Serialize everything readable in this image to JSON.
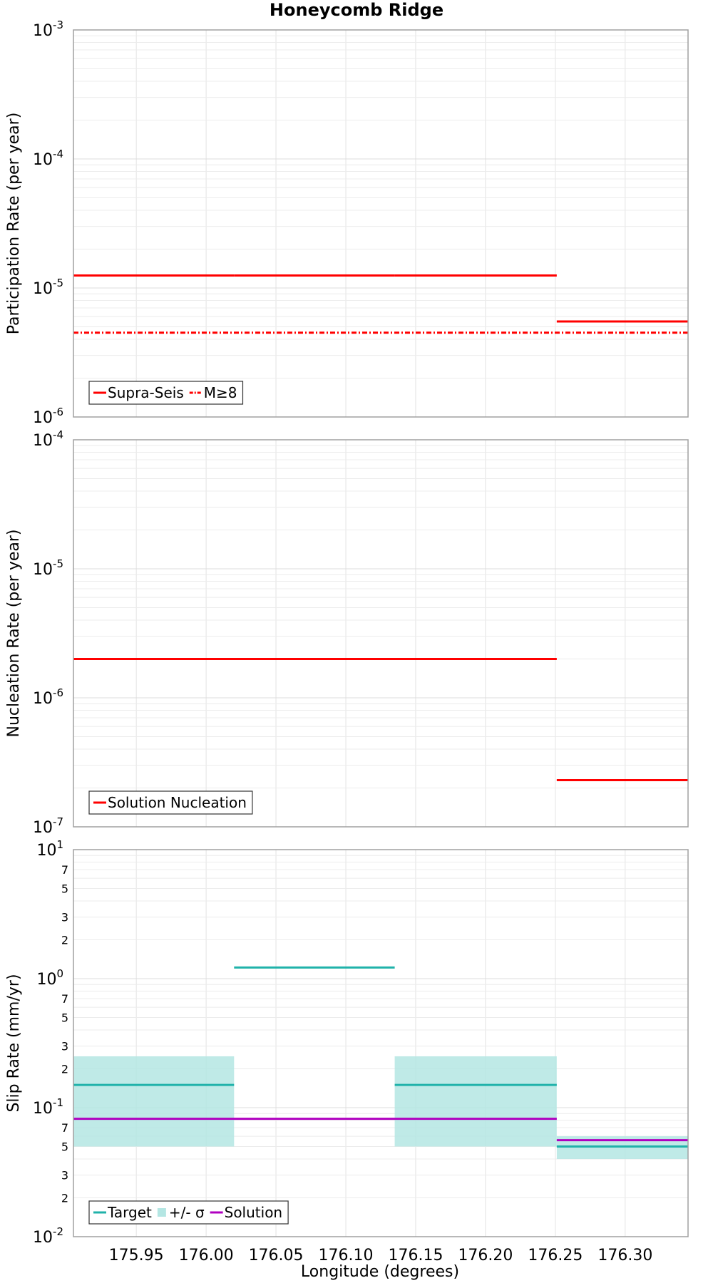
{
  "chart_data": {
    "type": "line",
    "title": "Honeycomb Ridge",
    "xlabel": "Longitude (degrees)",
    "xlim": [
      175.905,
      176.345
    ],
    "xticks": [
      "175.95",
      "176.00",
      "176.05",
      "176.10",
      "176.15",
      "176.20",
      "176.25",
      "176.30"
    ],
    "xtick_values": [
      175.95,
      176.0,
      176.05,
      176.1,
      176.15,
      176.2,
      176.25,
      176.3
    ],
    "panels": [
      {
        "name": "participation",
        "ylabel": "Participation Rate (per year)",
        "yscale": "log",
        "ylim": [
          1e-06,
          0.001
        ],
        "major_ticks": [
          {
            "exp": "-6",
            "value": 1e-06
          },
          {
            "exp": "-5",
            "value": 1e-05
          },
          {
            "exp": "-4",
            "value": 0.0001
          },
          {
            "exp": "-3",
            "value": 0.001
          }
        ],
        "minor_labels": [],
        "series": [
          {
            "name": "Supra-Seis",
            "color": "#ff0000",
            "style": "solid",
            "segments": [
              {
                "x": [
                  175.905,
                  176.02
                ],
                "y": 1.25e-05
              },
              {
                "x": [
                  176.02,
                  176.135
                ],
                "y": 1.25e-05
              },
              {
                "x": [
                  176.135,
                  176.251
                ],
                "y": 1.25e-05
              },
              {
                "x": [
                  176.251,
                  176.345
                ],
                "y": 5.5e-06
              }
            ]
          },
          {
            "name": "M≥8",
            "color": "#ff0000",
            "style": "dashdot",
            "segments": [
              {
                "x": [
                  175.905,
                  176.345
                ],
                "y": 4.5e-06
              }
            ]
          }
        ],
        "bands": [],
        "legend": [
          {
            "label": "Supra-Seis",
            "kind": "line",
            "color": "#ff0000",
            "style": "solid"
          },
          {
            "label": "M≥8",
            "kind": "line",
            "color": "#ff0000",
            "style": "dashdot"
          }
        ]
      },
      {
        "name": "nucleation",
        "ylabel": "Nucleation Rate (per year)",
        "yscale": "log",
        "ylim": [
          1e-07,
          0.0001
        ],
        "major_ticks": [
          {
            "exp": "-7",
            "value": 1e-07
          },
          {
            "exp": "-6",
            "value": 1e-06
          },
          {
            "exp": "-5",
            "value": 1e-05
          },
          {
            "exp": "-4",
            "value": 0.0001
          }
        ],
        "minor_labels": [],
        "series": [
          {
            "name": "Solution Nucleation",
            "color": "#ff0000",
            "style": "solid",
            "segments": [
              {
                "x": [
                  175.905,
                  176.251
                ],
                "y": 2e-06
              },
              {
                "x": [
                  176.251,
                  176.345
                ],
                "y": 2.3e-07
              }
            ]
          }
        ],
        "bands": [],
        "legend": [
          {
            "label": "Solution Nucleation",
            "kind": "line",
            "color": "#ff0000",
            "style": "solid"
          }
        ]
      },
      {
        "name": "slip",
        "ylabel": "Slip Rate (mm/yr)",
        "yscale": "log",
        "ylim": [
          0.01,
          10
        ],
        "major_ticks": [
          {
            "exp": "-2",
            "value": 0.01
          },
          {
            "exp": "-1",
            "value": 0.1
          },
          {
            "exp": "0",
            "value": 1
          },
          {
            "exp": "1",
            "value": 10
          }
        ],
        "minor_labels": [
          {
            "label": "2",
            "value": 0.02
          },
          {
            "label": "3",
            "value": 0.03
          },
          {
            "label": "5",
            "value": 0.05
          },
          {
            "label": "7",
            "value": 0.07
          },
          {
            "label": "2",
            "value": 0.2
          },
          {
            "label": "3",
            "value": 0.3
          },
          {
            "label": "5",
            "value": 0.5
          },
          {
            "label": "7",
            "value": 0.7
          },
          {
            "label": "2",
            "value": 2
          },
          {
            "label": "3",
            "value": 3
          },
          {
            "label": "5",
            "value": 5
          },
          {
            "label": "7",
            "value": 7
          }
        ],
        "series": [
          {
            "name": "Target",
            "color": "#20b2aa",
            "style": "solid",
            "segments": [
              {
                "x": [
                  175.905,
                  176.02
                ],
                "y": 0.15
              },
              {
                "x": [
                  176.02,
                  176.135
                ],
                "y": 1.22
              },
              {
                "x": [
                  176.135,
                  176.251
                ],
                "y": 0.15
              },
              {
                "x": [
                  176.251,
                  176.345
                ],
                "y": 0.05
              }
            ]
          },
          {
            "name": "Solution",
            "color": "#b000c0",
            "style": "solid",
            "segments": [
              {
                "x": [
                  175.905,
                  176.251
                ],
                "y": 0.082
              },
              {
                "x": [
                  176.251,
                  176.345
                ],
                "y": 0.056
              }
            ]
          }
        ],
        "bands": [
          {
            "name": "+/- σ",
            "color": "#b4e6e3",
            "regions": [
              {
                "x": [
                  175.905,
                  176.02
                ],
                "low": 0.05,
                "high": 0.25
              },
              {
                "x": [
                  176.135,
                  176.251
                ],
                "low": 0.05,
                "high": 0.25
              },
              {
                "x": [
                  176.251,
                  176.345
                ],
                "low": 0.04,
                "high": 0.06
              }
            ]
          }
        ],
        "legend": [
          {
            "label": "Target",
            "kind": "line",
            "color": "#20b2aa",
            "style": "solid"
          },
          {
            "label": "+/- σ",
            "kind": "box",
            "color": "#b4e6e3"
          },
          {
            "label": "Solution",
            "kind": "line",
            "color": "#b000c0",
            "style": "solid"
          }
        ]
      }
    ]
  }
}
